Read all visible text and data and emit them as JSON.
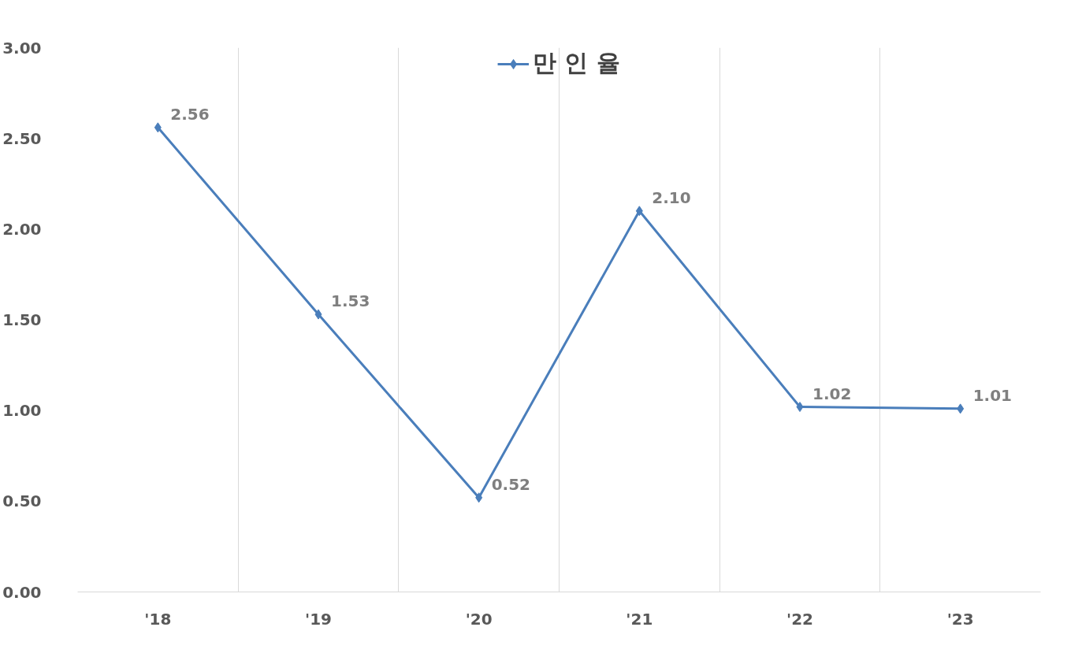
{
  "chart_data": {
    "type": "line",
    "categories": [
      "'18",
      "'19",
      "'20",
      "'21",
      "'22",
      "'23"
    ],
    "series": [
      {
        "name": "만 인 율",
        "color": "#4a7ebb",
        "values": [
          2.56,
          1.53,
          0.52,
          2.1,
          1.02,
          1.01
        ],
        "value_labels": [
          "2.56",
          "1.53",
          "0.52",
          "2.10",
          "1.02",
          "1.01"
        ]
      }
    ],
    "ylim": [
      0,
      3
    ],
    "yticks": [
      {
        "value": 0,
        "label": "0.00"
      },
      {
        "value": 0.5,
        "label": "0.50"
      },
      {
        "value": 1,
        "label": "1.00"
      },
      {
        "value": 1.5,
        "label": "1.50"
      },
      {
        "value": 2,
        "label": "2.00"
      },
      {
        "value": 2.5,
        "label": "2.50"
      },
      {
        "value": 3,
        "label": "3.00"
      }
    ],
    "grid": "x",
    "legend": "top",
    "marker": "diamond",
    "line_style": "solid"
  }
}
